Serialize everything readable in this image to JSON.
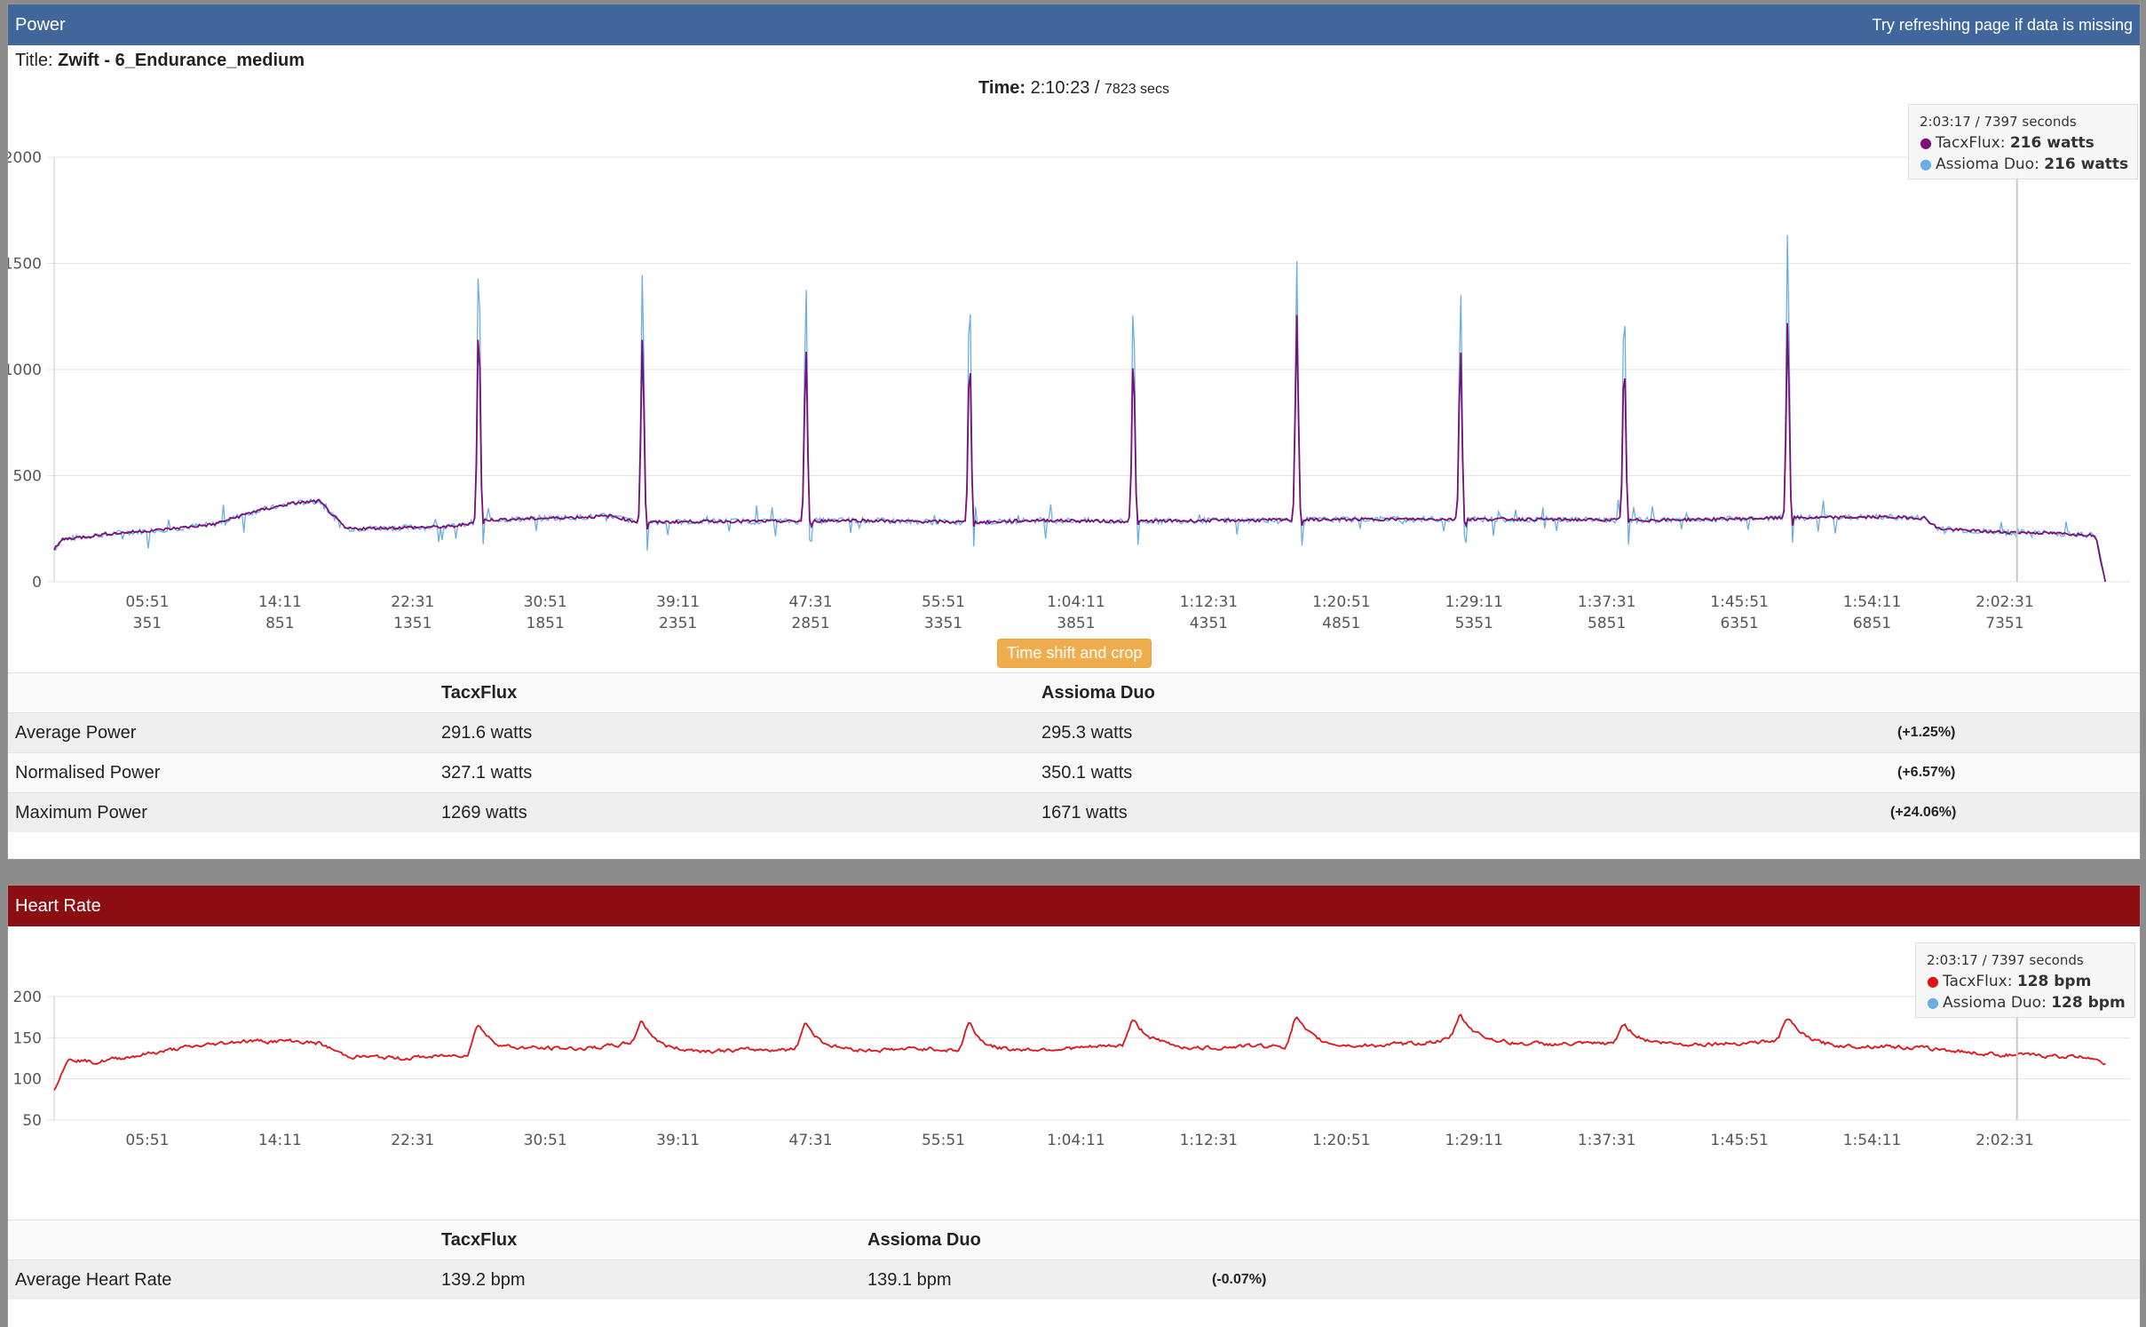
{
  "power": {
    "header_title": "Power",
    "header_hint": "Try refreshing page if data is missing",
    "title_label": "Title:",
    "title_value": "Zwift - 6_Endurance_medium",
    "time_label": "Time:",
    "time_value": "2:10:23",
    "time_sep": "/",
    "time_secs": "7823 secs",
    "button_label": "Time shift and crop",
    "tooltip": {
      "time": "2:03:17",
      "sep": "/",
      "seconds": "7397 seconds",
      "s1_name": "TacxFlux:",
      "s1_value": "216 watts",
      "s2_name": "Assioma Duo:",
      "s2_value": "216 watts"
    },
    "table": {
      "col1": "TacxFlux",
      "col2": "Assioma Duo",
      "rows": [
        {
          "label": "Average Power",
          "a": "291.6 watts",
          "b": "295.3 watts",
          "diff": "(+1.25%)"
        },
        {
          "label": "Normalised Power",
          "a": "327.1 watts",
          "b": "350.1 watts",
          "diff": "(+6.57%)"
        },
        {
          "label": "Maximum Power",
          "a": "1269 watts",
          "b": "1671 watts",
          "diff": "(+24.06%)"
        }
      ]
    }
  },
  "heart": {
    "header_title": "Heart Rate",
    "tooltip": {
      "time": "2:03:17",
      "sep": "/",
      "seconds": "7397 seconds",
      "s1_name": "TacxFlux:",
      "s1_value": "128 bpm",
      "s2_name": "Assioma Duo:",
      "s2_value": "128 bpm"
    },
    "table": {
      "col1": "TacxFlux",
      "col2": "Assioma Duo",
      "rows": [
        {
          "label": "Average Heart Rate",
          "a": "139.2 bpm",
          "b": "139.1 bpm",
          "diff": "(-0.07%)"
        }
      ]
    }
  },
  "chart_data": [
    {
      "type": "line",
      "title": "Power",
      "xlabel": "",
      "ylabel": "",
      "xlim": [
        0,
        7823
      ],
      "ylim": [
        0,
        2000
      ],
      "yticks": [
        "0",
        "500",
        "1000",
        "1500",
        "2000"
      ],
      "xticks_time": [
        "05:51",
        "14:11",
        "22:31",
        "30:51",
        "39:11",
        "47:31",
        "55:51",
        "1:04:11",
        "1:12:31",
        "1:20:51",
        "1:29:11",
        "1:37:31",
        "1:45:51",
        "1:54:11",
        "2:02:31"
      ],
      "xticks_secs": [
        "351",
        "851",
        "1351",
        "1851",
        "2351",
        "2851",
        "3351",
        "3851",
        "4351",
        "4851",
        "5351",
        "5851",
        "6351",
        "6851",
        "7351"
      ],
      "xtick_values": [
        351,
        851,
        1351,
        1851,
        2351,
        2851,
        3351,
        3851,
        4351,
        4851,
        5351,
        5851,
        6351,
        6851,
        7351
      ],
      "crosshair_x": 7397,
      "grid": true,
      "colors": {
        "TacxFlux": "#7a0f7a",
        "Assioma Duo": "#6aaee8"
      },
      "baseline": [
        [
          0,
          150
        ],
        [
          30,
          200
        ],
        [
          100,
          210
        ],
        [
          200,
          225
        ],
        [
          400,
          245
        ],
        [
          600,
          270
        ],
        [
          750,
          330
        ],
        [
          900,
          370
        ],
        [
          1000,
          380
        ],
        [
          1060,
          300
        ],
        [
          1100,
          250
        ],
        [
          1300,
          255
        ],
        [
          1500,
          260
        ],
        [
          1550,
          270
        ],
        [
          1600,
          290
        ],
        [
          2000,
          305
        ],
        [
          2100,
          310
        ],
        [
          2200,
          280
        ],
        [
          2500,
          285
        ],
        [
          2800,
          285
        ],
        [
          3000,
          290
        ],
        [
          3200,
          285
        ],
        [
          3500,
          280
        ],
        [
          3700,
          290
        ],
        [
          4000,
          285
        ],
        [
          4500,
          290
        ],
        [
          5000,
          295
        ],
        [
          5500,
          295
        ],
        [
          6000,
          290
        ],
        [
          6500,
          300
        ],
        [
          6900,
          305
        ],
        [
          7050,
          300
        ],
        [
          7100,
          250
        ],
        [
          7300,
          235
        ],
        [
          7500,
          230
        ],
        [
          7690,
          220
        ],
        [
          7700,
          180
        ],
        [
          7730,
          0
        ]
      ],
      "spikes": [
        {
          "x": 1600,
          "TacxFlux": 1230,
          "Assioma Duo": 1560
        },
        {
          "x": 2217,
          "TacxFlux": 1160,
          "Assioma Duo": 1480
        },
        {
          "x": 2833,
          "TacxFlux": 1110,
          "Assioma Duo": 1420
        },
        {
          "x": 3450,
          "TacxFlux": 1080,
          "Assioma Duo": 1400
        },
        {
          "x": 4067,
          "TacxFlux": 1070,
          "Assioma Duo": 1350
        },
        {
          "x": 4683,
          "TacxFlux": 1260,
          "Assioma Duo": 1500
        },
        {
          "x": 5300,
          "TacxFlux": 1110,
          "Assioma Duo": 1380
        },
        {
          "x": 5917,
          "TacxFlux": 1060,
          "Assioma Duo": 1340
        },
        {
          "x": 6533,
          "TacxFlux": 1240,
          "Assioma Duo": 1671
        }
      ]
    },
    {
      "type": "line",
      "title": "Heart Rate",
      "xlabel": "",
      "ylabel": "",
      "xlim": [
        0,
        7823
      ],
      "ylim": [
        50,
        200
      ],
      "yticks": [
        "50",
        "100",
        "150",
        "200"
      ],
      "xticks_time": [
        "05:51",
        "14:11",
        "22:31",
        "30:51",
        "39:11",
        "47:31",
        "55:51",
        "1:04:11",
        "1:12:31",
        "1:20:51",
        "1:29:11",
        "1:37:31",
        "1:45:51",
        "1:54:11",
        "2:02:31"
      ],
      "xtick_values": [
        351,
        851,
        1351,
        1851,
        2351,
        2851,
        3351,
        3851,
        4351,
        4851,
        5351,
        5851,
        6351,
        6851,
        7351
      ],
      "crosshair_x": 7397,
      "grid": true,
      "colors": {
        "TacxFlux": "#e0131b"
      },
      "baseline": [
        [
          0,
          88
        ],
        [
          30,
          110
        ],
        [
          60,
          125
        ],
        [
          150,
          120
        ],
        [
          300,
          128
        ],
        [
          500,
          138
        ],
        [
          700,
          146
        ],
        [
          900,
          146
        ],
        [
          1000,
          143
        ],
        [
          1100,
          128
        ],
        [
          1300,
          125
        ],
        [
          1500,
          128
        ],
        [
          1590,
          132
        ],
        [
          1800,
          137
        ],
        [
          2000,
          137
        ],
        [
          2100,
          140
        ],
        [
          2200,
          145
        ],
        [
          2300,
          135
        ],
        [
          2500,
          134
        ],
        [
          2700,
          136
        ],
        [
          2900,
          135
        ],
        [
          3100,
          135
        ],
        [
          3300,
          137
        ],
        [
          3500,
          132
        ],
        [
          3700,
          136
        ],
        [
          3900,
          138
        ],
        [
          4100,
          143
        ],
        [
          4300,
          137
        ],
        [
          4500,
          140
        ],
        [
          4700,
          140
        ],
        [
          4900,
          140
        ],
        [
          5100,
          142
        ],
        [
          5300,
          149
        ],
        [
          5500,
          143
        ],
        [
          5700,
          142
        ],
        [
          5900,
          143
        ],
        [
          6100,
          142
        ],
        [
          6300,
          143
        ],
        [
          6500,
          146
        ],
        [
          6700,
          140
        ],
        [
          6900,
          140
        ],
        [
          7100,
          136
        ],
        [
          7300,
          130
        ],
        [
          7500,
          128
        ],
        [
          7700,
          126
        ],
        [
          7730,
          118
        ]
      ],
      "peaks": [
        {
          "x": 1600,
          "y": 167
        },
        {
          "x": 2217,
          "y": 170
        },
        {
          "x": 2833,
          "y": 169
        },
        {
          "x": 3450,
          "y": 168
        },
        {
          "x": 4067,
          "y": 171
        },
        {
          "x": 4683,
          "y": 175
        },
        {
          "x": 5300,
          "y": 177
        },
        {
          "x": 5917,
          "y": 167
        },
        {
          "x": 6533,
          "y": 175
        }
      ]
    }
  ]
}
